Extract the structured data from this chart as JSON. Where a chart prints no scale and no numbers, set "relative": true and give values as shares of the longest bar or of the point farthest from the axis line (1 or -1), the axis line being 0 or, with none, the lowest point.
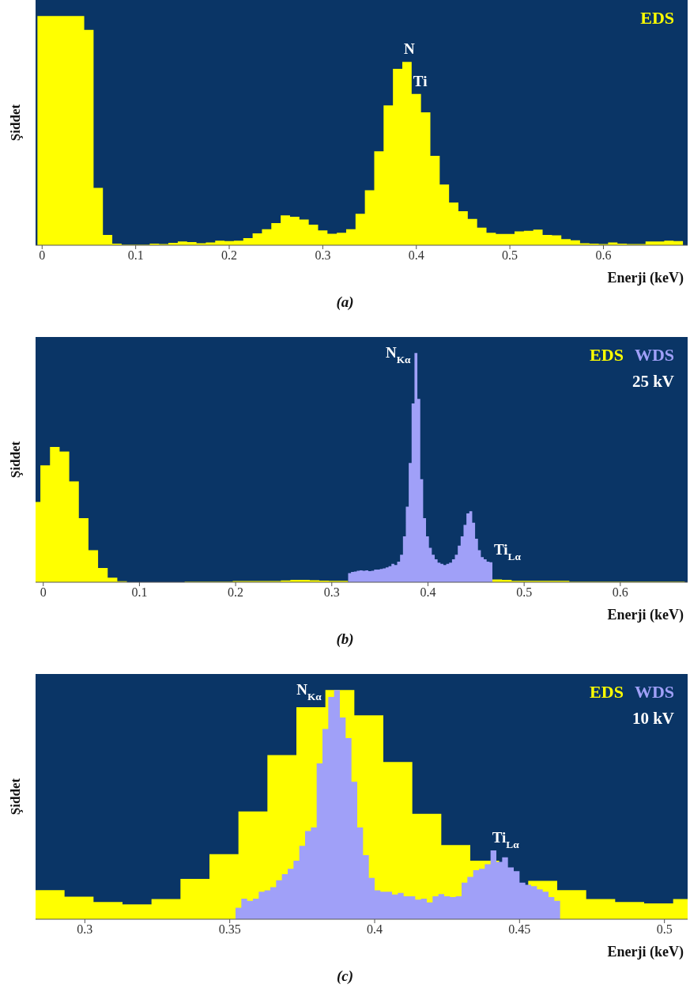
{
  "chart_data": [
    {
      "type": "area",
      "title": "(a)",
      "xlabel": "Enerji (keV)",
      "ylabel": "Şiddet",
      "relative": true,
      "xlim": [
        -0.007,
        0.69
      ],
      "xticks": [
        0,
        0.1,
        0.2,
        0.3,
        0.4,
        0.5,
        0.6
      ],
      "series": [
        {
          "name": "EDS",
          "color": "#ffff00",
          "x": [
            -0.005,
            0.005,
            0.015,
            0.025,
            0.035,
            0.045,
            0.055,
            0.065,
            0.075,
            0.085,
            0.095,
            0.105,
            0.115,
            0.125,
            0.135,
            0.145,
            0.155,
            0.165,
            0.175,
            0.185,
            0.195,
            0.205,
            0.215,
            0.225,
            0.235,
            0.245,
            0.255,
            0.265,
            0.275,
            0.285,
            0.295,
            0.305,
            0.315,
            0.325,
            0.335,
            0.345,
            0.355,
            0.365,
            0.375,
            0.385,
            0.395,
            0.405,
            0.415,
            0.425,
            0.435,
            0.445,
            0.455,
            0.465,
            0.475,
            0.485,
            0.495,
            0.505,
            0.515,
            0.525,
            0.535,
            0.545,
            0.555,
            0.565,
            0.575,
            0.585,
            0.595,
            0.605,
            0.615,
            0.625,
            0.635,
            0.645,
            0.655,
            0.665,
            0.675,
            0.685
          ],
          "values": [
            1,
            1,
            1,
            1,
            1,
            0.94,
            0.25,
            0.045,
            0.007,
            0.003,
            0.003,
            0.003,
            0.007,
            0.005,
            0.01,
            0.016,
            0.014,
            0.009,
            0.012,
            0.02,
            0.018,
            0.02,
            0.031,
            0.052,
            0.07,
            0.097,
            0.13,
            0.124,
            0.112,
            0.09,
            0.065,
            0.05,
            0.054,
            0.07,
            0.137,
            0.24,
            0.41,
            0.61,
            0.77,
            0.8,
            0.66,
            0.58,
            0.39,
            0.265,
            0.186,
            0.148,
            0.115,
            0.077,
            0.054,
            0.049,
            0.049,
            0.06,
            0.063,
            0.068,
            0.045,
            0.043,
            0.027,
            0.022,
            0.009,
            0.007,
            0.005,
            0.012,
            0.007,
            0.005,
            0.005,
            0.016,
            0.016,
            0.02,
            0.018,
            0.018
          ]
        }
      ],
      "annotations": [
        {
          "text": "N",
          "x": 0.385,
          "y": 0.8
        },
        {
          "text": "Ti",
          "x": 0.395,
          "y": 0.66
        }
      ]
    },
    {
      "type": "area",
      "title": "(b)",
      "xlabel": "Enerji (keV)",
      "ylabel": "Şiddet",
      "relative": true,
      "xlim": [
        -0.008,
        0.67
      ],
      "xticks": [
        0,
        0.1,
        0.2,
        0.3,
        0.4,
        0.5,
        0.6
      ],
      "series": [
        {
          "name": "EDS",
          "color": "#ffff00",
          "x": [
            -0.008,
            -0.003,
            0.007,
            0.017,
            0.027,
            0.037,
            0.047,
            0.057,
            0.067,
            0.077,
            0.087,
            0.097,
            0.107,
            0.117,
            0.127,
            0.137,
            0.147,
            0.157,
            0.167,
            0.177,
            0.187,
            0.197,
            0.207,
            0.217,
            0.227,
            0.237,
            0.247,
            0.257,
            0.267,
            0.277,
            0.287,
            0.297,
            0.307,
            0.317,
            0.467,
            0.477,
            0.487,
            0.497,
            0.507,
            0.517,
            0.527,
            0.537,
            0.547,
            0.557,
            0.567,
            0.577,
            0.587,
            0.597,
            0.607,
            0.617,
            0.627,
            0.637,
            0.647,
            0.657,
            0.667
          ],
          "values": [
            0.35,
            0.51,
            0.59,
            0.57,
            0.44,
            0.28,
            0.14,
            0.062,
            0.02,
            0.004,
            0,
            0,
            0,
            0,
            0,
            0,
            0.003,
            0.003,
            0.003,
            0.003,
            0.003,
            0.005,
            0.005,
            0.005,
            0.005,
            0.005,
            0.008,
            0.01,
            0.01,
            0.009,
            0.007,
            0.006,
            0.006,
            null,
            0.012,
            0.01,
            0.006,
            0.006,
            0.006,
            0.006,
            0.006,
            0.006,
            0.003,
            0.003,
            0.003,
            0.003,
            0.003,
            0.003,
            0.003,
            0.003,
            0.003,
            0.003,
            0.003,
            0.003,
            0.003
          ]
        },
        {
          "name": "WDS",
          "color": "#a0a0f8",
          "x": [
            0.317,
            0.32,
            0.323,
            0.326,
            0.329,
            0.332,
            0.335,
            0.338,
            0.341,
            0.344,
            0.347,
            0.35,
            0.353,
            0.356,
            0.359,
            0.362,
            0.365,
            0.368,
            0.371,
            0.374,
            0.377,
            0.38,
            0.383,
            0.386,
            0.389,
            0.392,
            0.395,
            0.398,
            0.401,
            0.404,
            0.407,
            0.41,
            0.413,
            0.416,
            0.419,
            0.422,
            0.425,
            0.428,
            0.431,
            0.434,
            0.437,
            0.44,
            0.443,
            0.446,
            0.449,
            0.452,
            0.455,
            0.458,
            0.461,
            0.464,
            0.467
          ],
          "values": [
            0.04,
            0.045,
            0.047,
            0.05,
            0.052,
            0.05,
            0.052,
            0.048,
            0.05,
            0.055,
            0.055,
            0.058,
            0.06,
            0.065,
            0.07,
            0.08,
            0.075,
            0.09,
            0.12,
            0.2,
            0.33,
            0.52,
            0.78,
            1,
            0.8,
            0.45,
            0.28,
            0.2,
            0.15,
            0.12,
            0.1,
            0.085,
            0.08,
            0.075,
            0.08,
            0.085,
            0.1,
            0.12,
            0.16,
            0.2,
            0.25,
            0.3,
            0.31,
            0.26,
            0.19,
            0.14,
            0.11,
            0.1,
            0.09,
            0.087,
            0.087
          ]
        }
      ],
      "annotations": [
        {
          "text": "N$_{Kα}$",
          "x": 0.386,
          "y": 1
        },
        {
          "text": "Ti$_{Lα}$",
          "x": 0.467,
          "y": 0.087
        },
        "25 kV"
      ]
    },
    {
      "type": "area",
      "title": "(c)",
      "xlabel": "Enerji (keV)",
      "ylabel": "Şiddet",
      "relative": true,
      "xlim": [
        0.283,
        0.508
      ],
      "xticks": [
        0.3,
        0.35,
        0.4,
        0.45,
        0.5
      ],
      "series": [
        {
          "name": "EDS",
          "color": "#ffff00",
          "x": [
            0.283,
            0.293,
            0.303,
            0.313,
            0.323,
            0.333,
            0.343,
            0.353,
            0.363,
            0.373,
            0.383,
            0.393,
            0.403,
            0.413,
            0.423,
            0.433,
            0.443,
            0.453,
            0.463,
            0.473,
            0.483,
            0.493,
            0.503,
            0.508
          ],
          "values": [
            0.127,
            0.098,
            0.075,
            0.065,
            0.088,
            0.176,
            0.284,
            0.47,
            0.716,
            0.925,
            1,
            0.89,
            0.686,
            0.46,
            0.324,
            0.255,
            null,
            0.167,
            0.127,
            0.088,
            0.075,
            0.069,
            0.088,
            0.088
          ]
        },
        {
          "name": "WDS",
          "color": "#a0a0f8",
          "x": [
            0.352,
            0.354,
            0.356,
            0.358,
            0.36,
            0.362,
            0.364,
            0.366,
            0.368,
            0.37,
            0.372,
            0.374,
            0.376,
            0.378,
            0.38,
            0.382,
            0.384,
            0.386,
            0.388,
            0.39,
            0.392,
            0.394,
            0.396,
            0.398,
            0.4,
            0.402,
            0.404,
            0.406,
            0.408,
            0.41,
            0.412,
            0.414,
            0.416,
            0.418,
            0.42,
            0.422,
            0.424,
            0.426,
            0.428,
            0.43,
            0.432,
            0.434,
            0.436,
            0.438,
            0.44,
            0.442,
            0.444,
            0.446,
            0.448,
            0.45,
            0.452,
            0.454,
            0.456,
            0.458,
            0.46,
            0.462,
            0.464
          ],
          "values": [
            0.05,
            0.09,
            0.08,
            0.09,
            0.12,
            0.126,
            0.14,
            0.17,
            0.197,
            0.22,
            0.255,
            0.32,
            0.385,
            0.4,
            0.68,
            0.83,
            0.97,
            1,
            0.88,
            0.79,
            0.6,
            0.4,
            0.28,
            0.18,
            0.126,
            0.12,
            0.12,
            0.108,
            0.115,
            0.1,
            0.1,
            0.085,
            0.09,
            0.073,
            0.1,
            0.11,
            0.1,
            0.097,
            0.1,
            0.16,
            0.185,
            0.214,
            0.22,
            0.24,
            0.3,
            0.25,
            0.27,
            0.226,
            0.21,
            0.16,
            0.15,
            0.144,
            0.13,
            0.12,
            0.097,
            0.08,
            0.08
          ]
        }
      ],
      "annotations": [
        {
          "text": "N$_{Kα}$",
          "x": 0.383,
          "y": 1
        },
        {
          "text": "Ti$_{Lα}$",
          "x": 0.44,
          "y": 0.3
        },
        "10 kV"
      ]
    }
  ]
}
